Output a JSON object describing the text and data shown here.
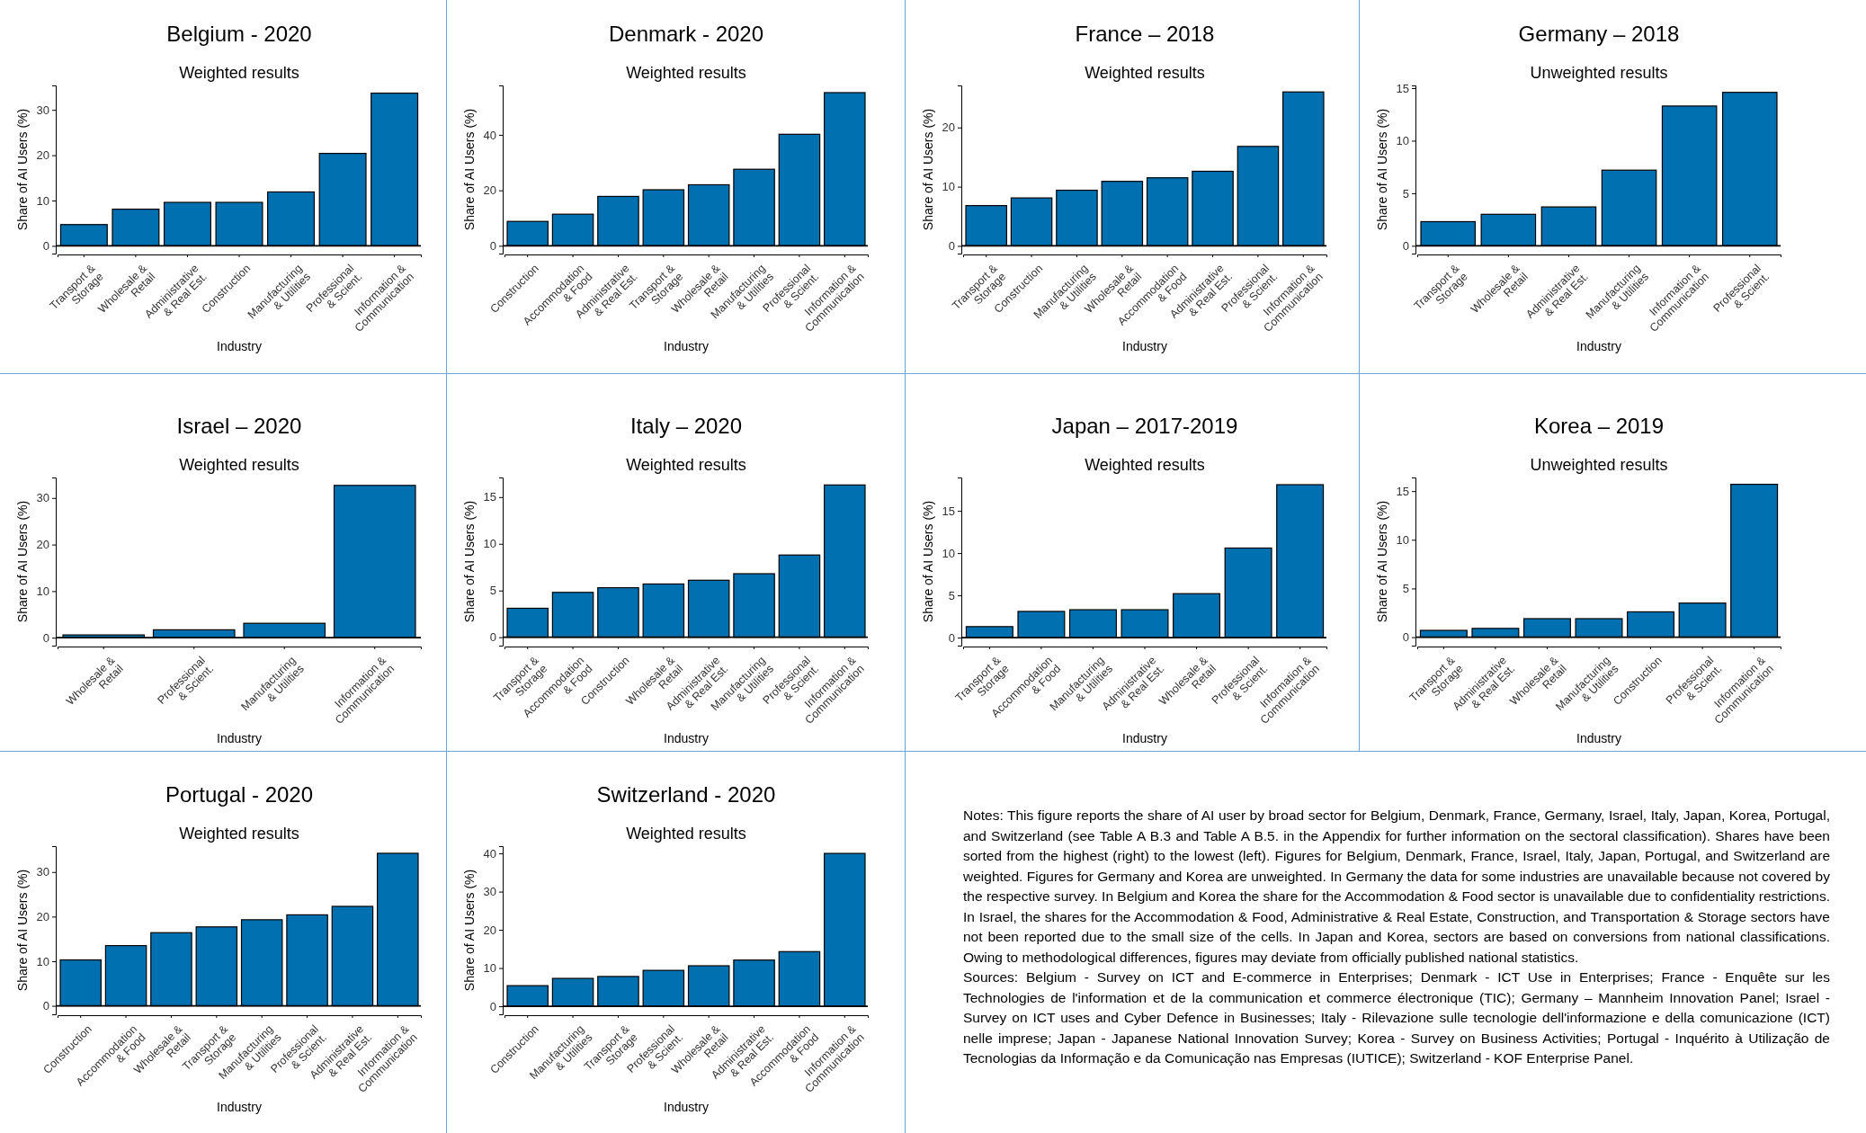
{
  "chart_data": [
    {
      "type": "bar",
      "title": "Belgium - 2020",
      "subtitle": "Weighted results",
      "xlabel": "Industry",
      "ylabel": "Share of AI Users (%)",
      "categories": [
        "Transport &\nStorage",
        "Wholesale &\nRetail",
        "Administrative\n& Real Est.",
        "Construction",
        "Manufacturing\n& Utilities",
        "Professional\n& Scient.",
        "Information &\nCommunication"
      ],
      "values": [
        4.7,
        8.1,
        9.6,
        9.6,
        11.9,
        20.4,
        33.7
      ],
      "color": "#0070b0",
      "ylim": [
        -1.7,
        35.4
      ],
      "yticks": [
        0,
        10,
        20,
        30
      ],
      "ref_lines": [
        {
          "axis": "y",
          "value": 0
        }
      ]
    },
    {
      "type": "bar",
      "title": "Denmark - 2020",
      "subtitle": "Weighted results",
      "xlabel": "Industry",
      "ylabel": "Share of AI Users (%)",
      "categories": [
        "Construction",
        "Accommodation\n& Food",
        "Administrative\n& Real Est.",
        "Transport &\nStorage",
        "Wholesale &\nRetail",
        "Manufacturing\n& Utilities",
        "Professional\n& Scient.",
        "Information &\nCommunication"
      ],
      "values": [
        8.8,
        11.4,
        17.8,
        20.2,
        22,
        27.6,
        40.2,
        55.2
      ],
      "color": "#0070b0",
      "ylim": [
        -2.8,
        57.8
      ],
      "yticks": [
        0,
        20,
        40
      ],
      "ref_lines": [
        {
          "axis": "y",
          "value": 0
        }
      ]
    },
    {
      "type": "bar",
      "title": "France – 2018",
      "subtitle": "Weighted results",
      "xlabel": "Industry",
      "ylabel": "Share of AI Users (%)",
      "categories": [
        "Transport &\nStorage",
        "Construction",
        "Manufacturing\n& Utilities",
        "Wholesale &\nRetail",
        "Accommodation\n& Food",
        "Administrative\n& Real Est.",
        "Professional\n& Scient.",
        "Information &\nCommunication"
      ],
      "values": [
        6.8,
        8.1,
        9.4,
        10.9,
        11.5,
        12.6,
        16.8,
        26
      ],
      "color": "#0070b0",
      "ylim": [
        -1.3,
        27.1
      ],
      "yticks": [
        0,
        10,
        20
      ],
      "ref_lines": [
        {
          "axis": "y",
          "value": 0
        }
      ]
    },
    {
      "type": "bar",
      "title": "Germany – 2018",
      "subtitle": "Unweighted results",
      "xlabel": "Industry",
      "ylabel": "Share of AI Users (%)",
      "categories": [
        "Transport &\nStorage",
        "Wholesale &\nRetail",
        "Administrative\n& Real Est.",
        "Manufacturing\n& Utilities",
        "Information &\nCommunication",
        "Professional\n& Scient."
      ],
      "values": [
        2.3,
        3,
        3.7,
        7.2,
        13.3,
        14.6
      ],
      "color": "#0070b0",
      "ylim": [
        -0.74,
        15.26
      ],
      "yticks": [
        0,
        5,
        10,
        15
      ],
      "ref_lines": [
        {
          "axis": "y",
          "value": 0
        }
      ]
    },
    {
      "type": "bar",
      "title": "Israel – 2020",
      "subtitle": "Weighted results",
      "xlabel": "Industry",
      "ylabel": "Share of AI Users (%)",
      "categories": [
        "Wholesale &\nRetail",
        "Professional\n& Scient.",
        "Manufacturing\n& Utilities",
        "Information &\nCommunication"
      ],
      "values": [
        0.6,
        1.7,
        3.1,
        32.7
      ],
      "color": "#0070b0",
      "ylim": [
        -1.7,
        34.4
      ],
      "yticks": [
        0,
        10,
        20,
        30
      ],
      "ref_lines": [
        {
          "axis": "y",
          "value": 0
        }
      ]
    },
    {
      "type": "bar",
      "title": "Italy – 2020",
      "subtitle": "Weighted results",
      "xlabel": "Industry",
      "ylabel": "Share of AI Users (%)",
      "categories": [
        "Transport &\nStorage",
        "Accommodation\n& Food",
        "Construction",
        "Wholesale &\nRetail",
        "Administrative\n& Real Est.",
        "Manufacturing\n& Utilities",
        "Professional\n& Scient.",
        "Information &\nCommunication"
      ],
      "values": [
        3.1,
        4.8,
        5.3,
        5.7,
        6.1,
        6.8,
        8.8,
        16.3
      ],
      "color": "#0070b0",
      "ylim": [
        -0.9,
        17.1
      ],
      "yticks": [
        0,
        5,
        10,
        15
      ],
      "ref_lines": [
        {
          "axis": "y",
          "value": 0
        }
      ]
    },
    {
      "type": "bar",
      "title": "Japan – 2017-2019",
      "subtitle": "Weighted results",
      "xlabel": "Industry",
      "ylabel": "Share of AI Users (%)",
      "categories": [
        "Transport &\nStorage",
        "Accommodation\n& Food",
        "Manufacturing\n& Utilities",
        "Administrative\n& Real Est.",
        "Wholesale &\nRetail",
        "Professional\n& Scient.",
        "Information &\nCommunication"
      ],
      "values": [
        1.3,
        3.1,
        3.3,
        3.3,
        5.2,
        10.6,
        18.1
      ],
      "color": "#0070b0",
      "ylim": [
        -0.95,
        18.95
      ],
      "yticks": [
        0,
        5,
        10,
        15
      ],
      "ref_lines": [
        {
          "axis": "y",
          "value": 0
        }
      ]
    },
    {
      "type": "bar",
      "title": "Korea – 2019",
      "subtitle": "Unweighted results",
      "xlabel": "Industry",
      "ylabel": "Share of AI Users (%)",
      "categories": [
        "Transport &\nStorage",
        "Administrative\n& Real Est.",
        "Wholesale &\nRetail",
        "Manufacturing\n& Utilities",
        "Construction",
        "Professional\n& Scient.",
        "Information &\nCommunication"
      ],
      "values": [
        0.7,
        0.9,
        1.9,
        1.9,
        2.6,
        3.5,
        15.7
      ],
      "color": "#0070b0",
      "ylim": [
        -0.87,
        16.4
      ],
      "yticks": [
        0,
        5,
        10,
        15
      ],
      "ref_lines": [
        {
          "axis": "y",
          "value": 0
        }
      ]
    },
    {
      "type": "bar",
      "title": "Portugal - 2020",
      "subtitle": "Weighted results",
      "xlabel": "Industry",
      "ylabel": "Share of AI Users (%)",
      "categories": [
        "Construction",
        "Accommodation\n& Food",
        "Wholesale &\nRetail",
        "Transport &\nStorage",
        "Manufacturing\n& Utilities",
        "Professional\n& Scient.",
        "Administrative\n& Real Est.",
        "Information &\nCommunication"
      ],
      "values": [
        10.3,
        13.5,
        16.4,
        17.7,
        19.3,
        20.4,
        22.3,
        34.2
      ],
      "color": "#0070b0",
      "ylim": [
        -1.9,
        35.8
      ],
      "yticks": [
        0,
        10,
        20,
        30
      ],
      "ref_lines": [
        {
          "axis": "y",
          "value": 0
        }
      ]
    },
    {
      "type": "bar",
      "title": "Switzerland - 2020",
      "subtitle": "Weighted results",
      "xlabel": "Industry",
      "ylabel": "Share of AI Users (%)",
      "categories": [
        "Construction",
        "Manufacturing\n& Utilities",
        "Transport &\nStorage",
        "Professional\n& Scient.",
        "Wholesale &\nRetail",
        "Administrative\n& Real Est.",
        "Accommodation\n& Food",
        "Information &\nCommunication"
      ],
      "values": [
        5.4,
        7.3,
        7.8,
        9.4,
        10.6,
        12.1,
        14.3,
        40
      ],
      "color": "#0070b0",
      "ylim": [
        -2.1,
        41.9
      ],
      "yticks": [
        0,
        10,
        20,
        30,
        40
      ],
      "ref_lines": [
        {
          "axis": "y",
          "value": 0
        }
      ]
    },
    {
      "type": "other",
      "annotations": [
        "Notes: This figure reports the share of AI user by broad sector for Belgium, Denmark, France, Germany, Israel, Italy, Japan, Korea, Portugal, and Switzerland (see Table A B.3 and Table A B.5. in the Appendix for further information on the sectoral classification). Shares have been sorted from the highest (right) to the lowest (left). Figures for Belgium, Denmark, France, Israel, Italy, Japan, Portugal, and Switzerland are weighted. Figures for Germany and Korea are unweighted. In Germany the data for some industries are unavailable because not covered by the respective survey. In Belgium and Korea the share for the Accommodation & Food sector is unavailable due to confidentiality restrictions. In Israel, the shares for the Accommodation & Food, Administrative & Real Estate, Construction, and Transportation & Storage sectors have not been reported due to the small size of the cells. In Japan and Korea, sectors are based on conversions from national classifications. Owing to methodological differences, figures may deviate from officially published national statistics.",
        "Sources: Belgium - Survey on ICT and E-commerce in Enterprises; Denmark - ICT Use in Enterprises; France - Enquête sur les Technologies de l'information et de la communication et commerce électronique (TIC); Germany – Mannheim Innovation Panel; Israel - Survey on ICT uses and Cyber Defence in Businesses; Italy - Rilevazione sulle tecnologie dell'informazione e della comunicazione (ICT) nelle imprese; Japan - Japanese National Innovation Survey; Korea - Survey on Business Activities; Portugal - Inquérito à Utilização de Tecnologias da Informação e da Comunicação nas Empresas (IUTICE); Switzerland - KOF Enterprise Panel."
      ]
    }
  ]
}
